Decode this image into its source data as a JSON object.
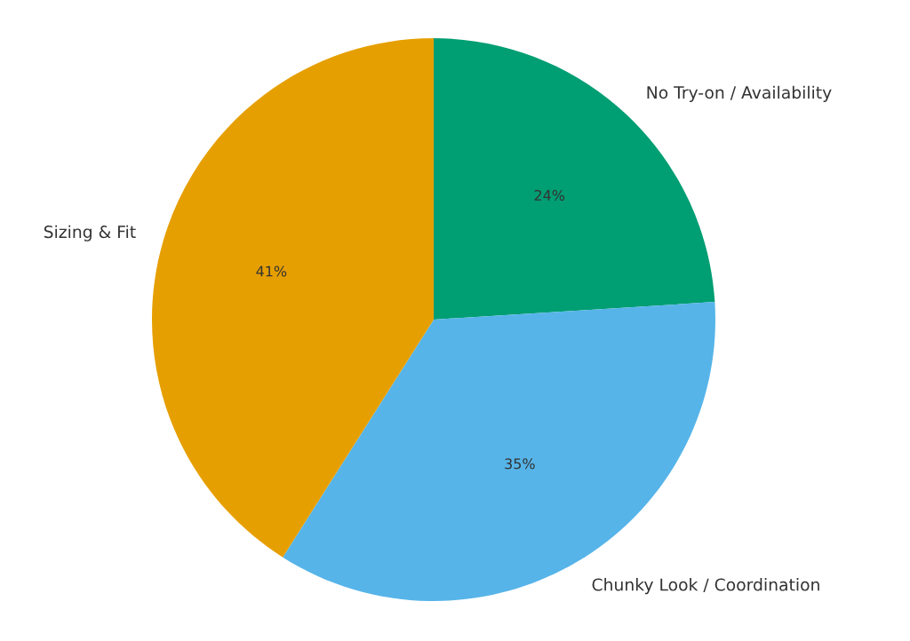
{
  "chart_data": {
    "type": "pie",
    "categories": [
      "No Try-on / Availability",
      "Chunky Look / Coordination",
      "Sizing & Fit"
    ],
    "values": [
      24,
      35,
      41
    ],
    "colors": [
      "#009e73",
      "#56b4e9",
      "#e69f00"
    ],
    "value_labels": [
      "24%",
      "35%",
      "41%"
    ]
  }
}
